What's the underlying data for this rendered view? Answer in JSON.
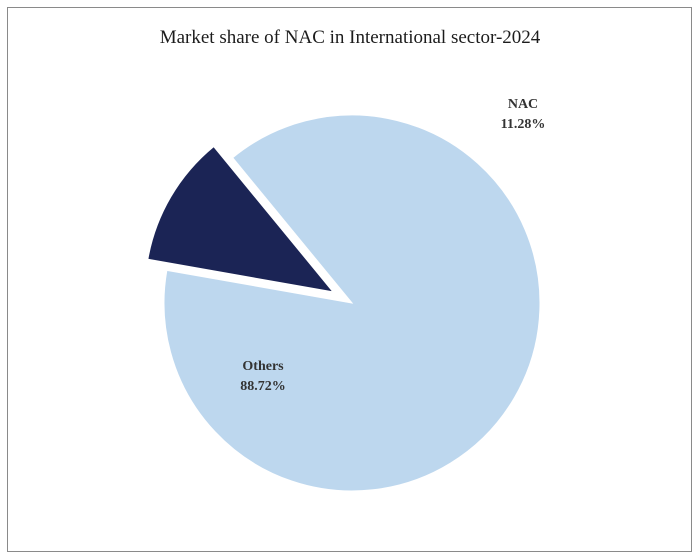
{
  "chart_data": {
    "type": "pie",
    "title": "Market share of NAC in International sector-2024",
    "slices": [
      {
        "label": "NAC",
        "value": 11.28,
        "value_label": "11.28%",
        "color": "#1b2455",
        "exploded": true
      },
      {
        "label": "Others",
        "value": 88.72,
        "value_label": "88.72%",
        "color": "#bdd7ee",
        "exploded": false
      }
    ],
    "legend": "none",
    "data_labels": "name and percentage"
  }
}
